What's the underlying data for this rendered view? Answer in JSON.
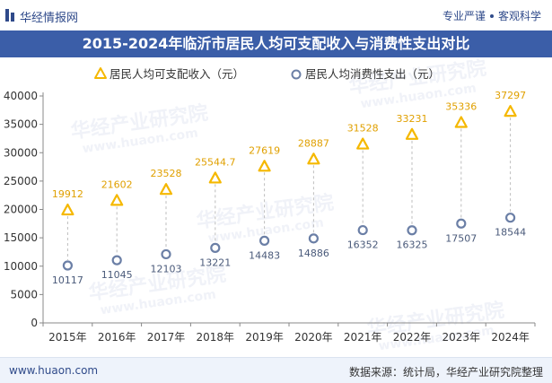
{
  "header": {
    "brand": "华经情报网",
    "tagline_left": "专业严谨",
    "tagline_right": "客观科学"
  },
  "title": "2015-2024年临沂市居民人均可支配收入与消费性支出对比",
  "footer": {
    "site": "www.huaon.com",
    "source": "数据来源：统计局，华经产业研究院整理"
  },
  "watermark": {
    "text_cn": "华经产业研究院",
    "text_en": "www.huaon.com"
  },
  "colors": {
    "income": "#f5b800",
    "spending": "#6b7fa6",
    "title_bg": "#3b5ea8"
  },
  "chart_data": {
    "type": "scatter",
    "categories": [
      "2015年",
      "2016年",
      "2017年",
      "2018年",
      "2019年",
      "2020年",
      "2021年",
      "2022年",
      "2023年",
      "2024年"
    ],
    "ylim": [
      0,
      40000
    ],
    "yticks": [
      0,
      5000,
      10000,
      15000,
      20000,
      25000,
      30000,
      35000,
      40000
    ],
    "legend_position": "top",
    "series": [
      {
        "name": "居民人均可支配收入（元）",
        "marker": "triangle",
        "values": [
          19912,
          21602,
          23528,
          25544.7,
          27619,
          28887,
          31528,
          33231,
          35336,
          37297
        ],
        "labels": [
          "19912",
          "21602",
          "23528",
          "25544.7",
          "27619",
          "28887",
          "31528",
          "33231",
          "35336",
          "37297"
        ]
      },
      {
        "name": "居民人均消费性支出（元）",
        "marker": "circle",
        "values": [
          10117,
          11045,
          12103,
          13221,
          14483,
          14886,
          16352,
          16325,
          17507,
          18544
        ],
        "labels": [
          "10117",
          "11045",
          "12103",
          "13221",
          "14483",
          "14886",
          "16352",
          "16325",
          "17507",
          "18544"
        ]
      }
    ]
  }
}
